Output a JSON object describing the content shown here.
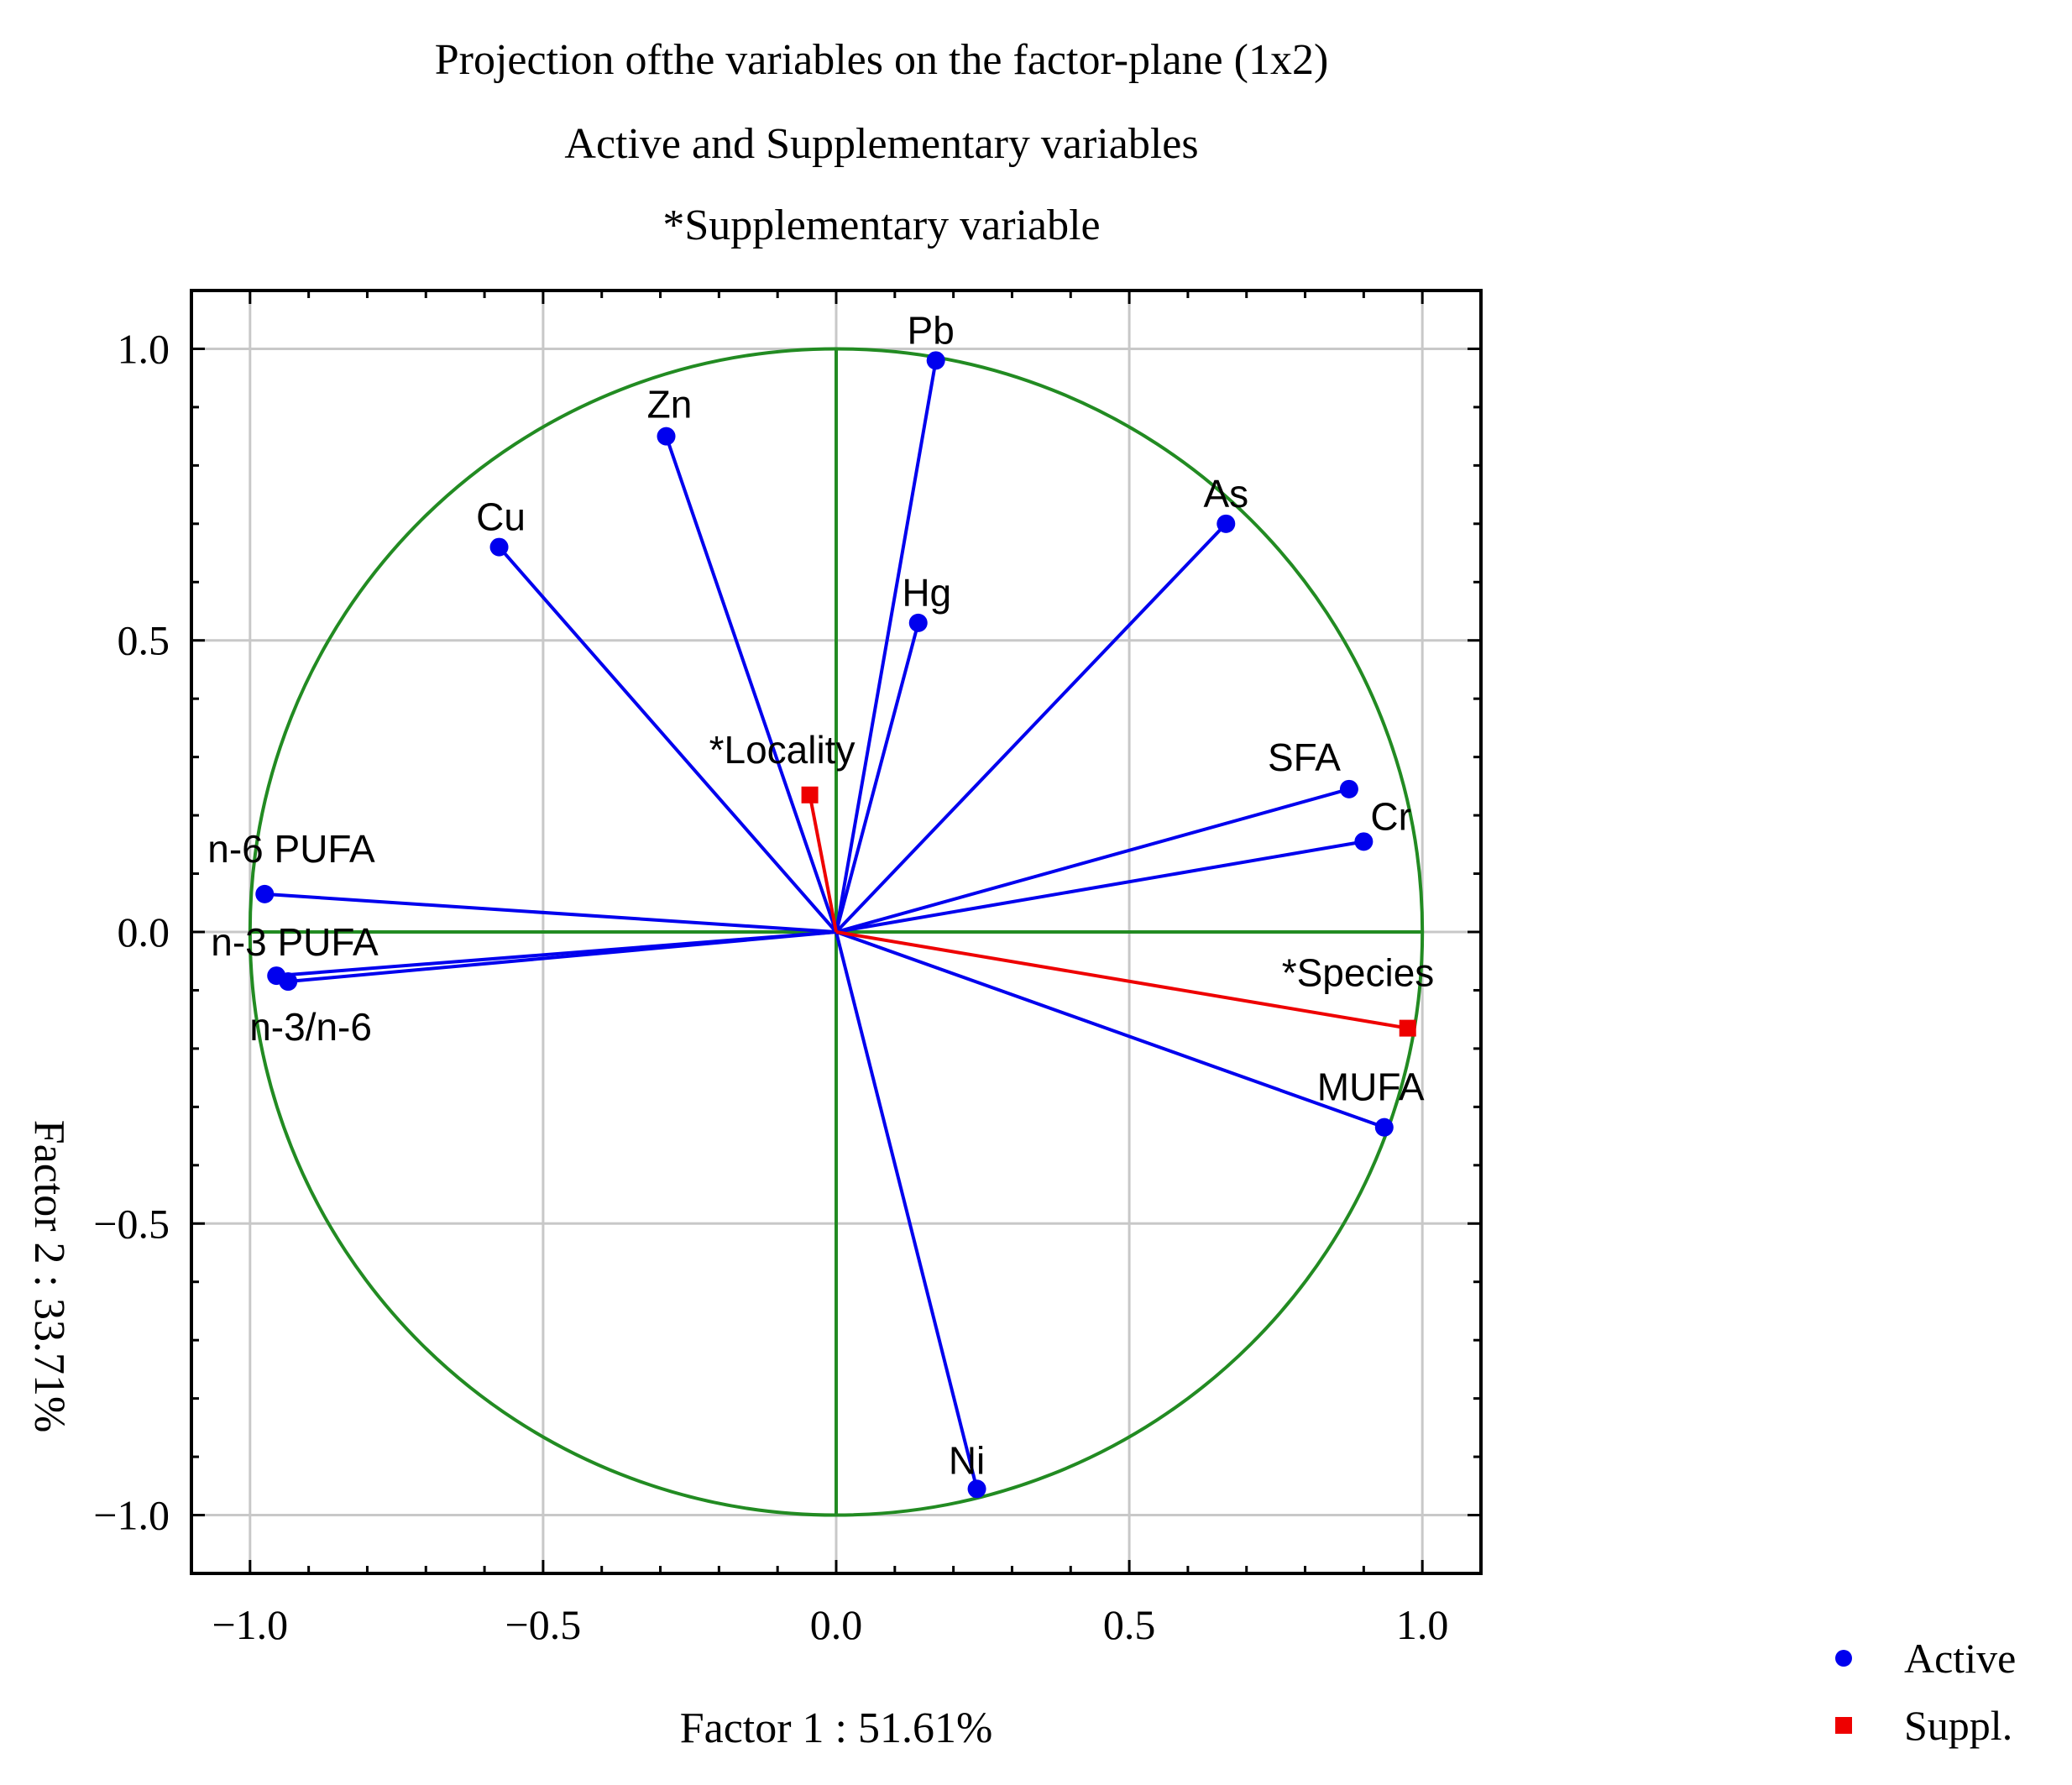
{
  "chart_data": {
    "type": "scatter",
    "title": "Projection ofthe variables on the factor-plane (1x2)",
    "subtitle": "Active and Supplementary variables",
    "note": "*Supplementary variable",
    "xlabel": "Factor 1 : 51.61%",
    "ylabel": "Factor 2 : 33.71%",
    "xlim": [
      -1.1,
      1.1
    ],
    "ylim": [
      -1.1,
      1.1
    ],
    "x_ticks": [
      -1.0,
      -0.5,
      0.0,
      0.5,
      1.0
    ],
    "y_ticks": [
      -1.0,
      -0.5,
      0.0,
      0.5,
      1.0
    ],
    "x_tick_labels": [
      "−1.0",
      "−0.5",
      "0.0",
      "0.5",
      "1.0"
    ],
    "y_tick_labels": [
      "−1.0",
      "−0.5",
      "0.0",
      "0.5",
      "1.0"
    ],
    "grid": true,
    "unit_circle": true,
    "legend_position": "bottom-right",
    "colors": {
      "active": "#0000ee",
      "supplementary": "#ee0000",
      "circle": "#228b22",
      "grid": "#c8c8c8",
      "axis_lines": "#228b22"
    },
    "legend": [
      {
        "name": "Active",
        "marker": "circle",
        "color": "#0000ee"
      },
      {
        "name": "Suppl.",
        "marker": "square",
        "color": "#ee0000"
      }
    ],
    "series": [
      {
        "name": "Active",
        "points": [
          {
            "label": "Pb",
            "x": 0.17,
            "y": 0.98
          },
          {
            "label": "Zn",
            "x": -0.29,
            "y": 0.85
          },
          {
            "label": "Cu",
            "x": -0.575,
            "y": 0.66
          },
          {
            "label": "As",
            "x": 0.665,
            "y": 0.7
          },
          {
            "label": "Hg",
            "x": 0.14,
            "y": 0.53
          },
          {
            "label": "SFA",
            "x": 0.875,
            "y": 0.245
          },
          {
            "label": "Cr",
            "x": 0.9,
            "y": 0.155
          },
          {
            "label": "n-6 PUFA",
            "x": -0.975,
            "y": 0.065
          },
          {
            "label": "n-3 PUFA",
            "x": -0.955,
            "y": -0.075
          },
          {
            "label": "n-3/n-6",
            "x": -0.935,
            "y": -0.085
          },
          {
            "label": "MUFA",
            "x": 0.935,
            "y": -0.335
          },
          {
            "label": "Ni",
            "x": 0.24,
            "y": -0.955
          }
        ]
      },
      {
        "name": "Suppl.",
        "points": [
          {
            "label": "*Locality",
            "x": -0.045,
            "y": 0.235
          },
          {
            "label": "*Species",
            "x": 0.975,
            "y": -0.165
          }
        ]
      }
    ]
  }
}
